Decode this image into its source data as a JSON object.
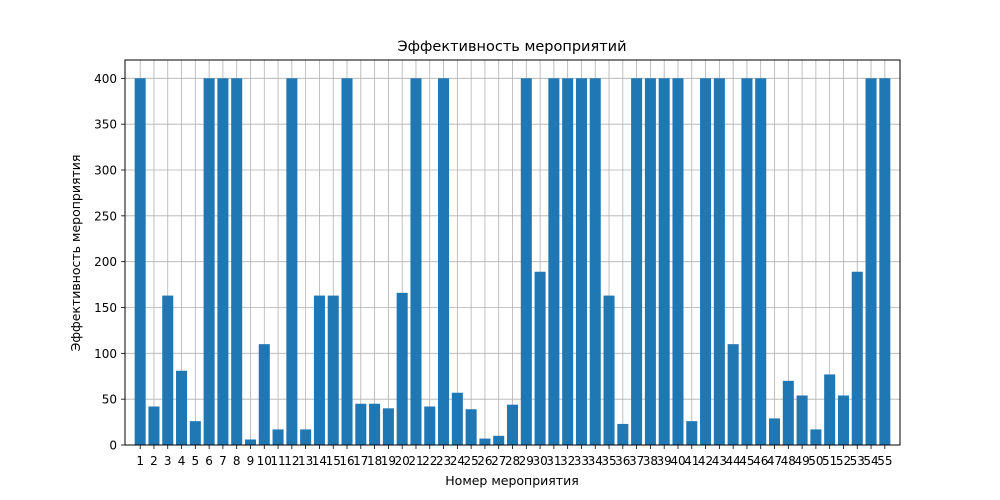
{
  "chart_data": {
    "type": "bar",
    "title": "Эффективность мероприятий",
    "xlabel": "Номер мероприятия",
    "ylabel": "Эффективность мероприятия",
    "categories": [
      "1",
      "2",
      "3",
      "4",
      "5",
      "6",
      "7",
      "8",
      "9",
      "10",
      "11",
      "12",
      "13",
      "14",
      "15",
      "16",
      "17",
      "18",
      "19",
      "20",
      "21",
      "22",
      "23",
      "24",
      "25",
      "26",
      "27",
      "28",
      "29",
      "30",
      "31",
      "32",
      "33",
      "34",
      "35",
      "36",
      "37",
      "38",
      "39",
      "40",
      "41",
      "42",
      "43",
      "44",
      "45",
      "46",
      "47",
      "48",
      "49",
      "50",
      "51",
      "52",
      "53",
      "54",
      "55"
    ],
    "values": [
      400,
      42,
      163,
      81,
      26,
      400,
      400,
      400,
      6,
      110,
      17,
      400,
      17,
      163,
      163,
      400,
      45,
      45,
      40,
      166,
      400,
      42,
      400,
      57,
      39,
      7,
      10,
      44,
      400,
      189,
      400,
      400,
      400,
      400,
      163,
      23,
      400,
      400,
      400,
      400,
      26,
      400,
      400,
      110,
      400,
      400,
      29,
      70,
      54,
      17,
      77,
      54,
      189,
      400,
      400
    ],
    "ylim": [
      0,
      420
    ],
    "yticks": [
      0,
      50,
      100,
      150,
      200,
      250,
      300,
      350,
      400
    ],
    "grid": true,
    "bar_color": "#1f77b4"
  }
}
